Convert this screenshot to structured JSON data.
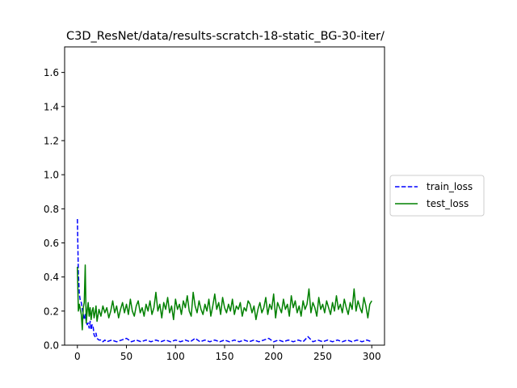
{
  "chart_data": {
    "type": "line",
    "title": "C3D_ResNet/data/results-scratch-18-static_BG-30-iter/",
    "xlabel": "",
    "ylabel": "",
    "xlim": [
      -13,
      313
    ],
    "ylim": [
      0.0,
      1.75
    ],
    "x_ticks": [
      0,
      50,
      100,
      150,
      200,
      250,
      300
    ],
    "y_ticks": [
      0.0,
      0.2,
      0.4,
      0.6,
      0.8,
      1.0,
      1.2,
      1.4,
      1.6
    ],
    "grid": false,
    "legend_position": "center-right outside",
    "series": [
      {
        "name": "train_loss",
        "color": "#0000ff",
        "style": "dashed",
        "x": [
          0,
          1,
          2,
          3,
          4,
          5,
          6,
          7,
          8,
          9,
          10,
          11,
          12,
          13,
          14,
          15,
          16,
          17,
          18,
          19,
          20,
          22,
          24,
          26,
          28,
          30,
          35,
          40,
          45,
          50,
          55,
          60,
          65,
          70,
          75,
          80,
          85,
          90,
          95,
          100,
          105,
          110,
          115,
          120,
          125,
          130,
          135,
          140,
          145,
          150,
          155,
          160,
          165,
          170,
          175,
          180,
          185,
          190,
          195,
          200,
          205,
          210,
          215,
          220,
          225,
          230,
          235,
          240,
          245,
          250,
          255,
          260,
          265,
          270,
          275,
          280,
          285,
          290,
          295,
          300
        ],
        "y": [
          0.74,
          0.42,
          0.3,
          0.26,
          0.25,
          0.21,
          0.18,
          0.15,
          0.18,
          0.14,
          0.12,
          0.13,
          0.1,
          0.14,
          0.09,
          0.12,
          0.11,
          0.06,
          0.05,
          0.07,
          0.04,
          0.03,
          0.03,
          0.02,
          0.03,
          0.02,
          0.03,
          0.02,
          0.03,
          0.04,
          0.02,
          0.03,
          0.02,
          0.03,
          0.02,
          0.03,
          0.02,
          0.03,
          0.02,
          0.03,
          0.02,
          0.03,
          0.02,
          0.04,
          0.02,
          0.03,
          0.02,
          0.03,
          0.02,
          0.03,
          0.02,
          0.03,
          0.02,
          0.03,
          0.02,
          0.03,
          0.02,
          0.03,
          0.04,
          0.02,
          0.03,
          0.02,
          0.03,
          0.02,
          0.03,
          0.02,
          0.05,
          0.02,
          0.03,
          0.02,
          0.03,
          0.02,
          0.03,
          0.02,
          0.03,
          0.02,
          0.03,
          0.02,
          0.03,
          0.02
        ]
      },
      {
        "name": "test_loss",
        "color": "#008000",
        "style": "solid",
        "x": [
          0,
          1,
          2,
          3,
          4,
          5,
          6,
          7,
          8,
          9,
          10,
          11,
          12,
          13,
          14,
          15,
          16,
          17,
          18,
          19,
          20,
          22,
          24,
          26,
          28,
          30,
          32,
          34,
          36,
          38,
          40,
          42,
          44,
          46,
          48,
          50,
          52,
          54,
          56,
          58,
          60,
          62,
          64,
          66,
          68,
          70,
          72,
          74,
          76,
          78,
          80,
          82,
          84,
          86,
          88,
          90,
          92,
          94,
          96,
          98,
          100,
          102,
          104,
          106,
          108,
          110,
          112,
          114,
          116,
          118,
          120,
          122,
          124,
          126,
          128,
          130,
          132,
          134,
          136,
          138,
          140,
          142,
          144,
          146,
          148,
          150,
          152,
          154,
          156,
          158,
          160,
          162,
          164,
          166,
          168,
          170,
          172,
          174,
          176,
          178,
          180,
          182,
          184,
          186,
          188,
          190,
          192,
          194,
          196,
          198,
          200,
          202,
          204,
          206,
          208,
          210,
          212,
          214,
          216,
          218,
          220,
          222,
          224,
          226,
          228,
          230,
          232,
          234,
          236,
          238,
          240,
          242,
          244,
          246,
          248,
          250,
          252,
          254,
          256,
          258,
          260,
          262,
          264,
          266,
          268,
          270,
          272,
          274,
          276,
          278,
          280,
          282,
          284,
          286,
          288,
          290,
          292,
          294,
          296,
          298,
          300
        ],
        "y": [
          0.46,
          0.2,
          0.24,
          0.21,
          0.18,
          0.09,
          0.22,
          0.25,
          0.47,
          0.13,
          0.2,
          0.25,
          0.17,
          0.22,
          0.15,
          0.2,
          0.22,
          0.16,
          0.19,
          0.23,
          0.14,
          0.21,
          0.17,
          0.23,
          0.19,
          0.22,
          0.16,
          0.2,
          0.26,
          0.19,
          0.23,
          0.16,
          0.21,
          0.25,
          0.19,
          0.24,
          0.18,
          0.27,
          0.2,
          0.17,
          0.23,
          0.26,
          0.19,
          0.22,
          0.17,
          0.24,
          0.2,
          0.26,
          0.18,
          0.22,
          0.31,
          0.2,
          0.24,
          0.16,
          0.25,
          0.21,
          0.28,
          0.19,
          0.23,
          0.15,
          0.27,
          0.21,
          0.24,
          0.18,
          0.26,
          0.22,
          0.29,
          0.2,
          0.17,
          0.31,
          0.23,
          0.19,
          0.26,
          0.21,
          0.18,
          0.24,
          0.2,
          0.27,
          0.17,
          0.23,
          0.3,
          0.21,
          0.25,
          0.18,
          0.28,
          0.22,
          0.19,
          0.24,
          0.2,
          0.27,
          0.18,
          0.23,
          0.21,
          0.25,
          0.17,
          0.22,
          0.2,
          0.26,
          0.24,
          0.19,
          0.23,
          0.15,
          0.21,
          0.25,
          0.19,
          0.22,
          0.28,
          0.18,
          0.24,
          0.21,
          0.3,
          0.16,
          0.25,
          0.22,
          0.19,
          0.27,
          0.21,
          0.24,
          0.17,
          0.29,
          0.22,
          0.26,
          0.19,
          0.23,
          0.17,
          0.26,
          0.21,
          0.24,
          0.33,
          0.19,
          0.25,
          0.22,
          0.17,
          0.28,
          0.21,
          0.24,
          0.19,
          0.26,
          0.22,
          0.18,
          0.25,
          0.2,
          0.29,
          0.21,
          0.24,
          0.19,
          0.27,
          0.22,
          0.18,
          0.25,
          0.21,
          0.33,
          0.2,
          0.26,
          0.22,
          0.19,
          0.28,
          0.23,
          0.16,
          0.24,
          0.26
        ]
      }
    ]
  }
}
